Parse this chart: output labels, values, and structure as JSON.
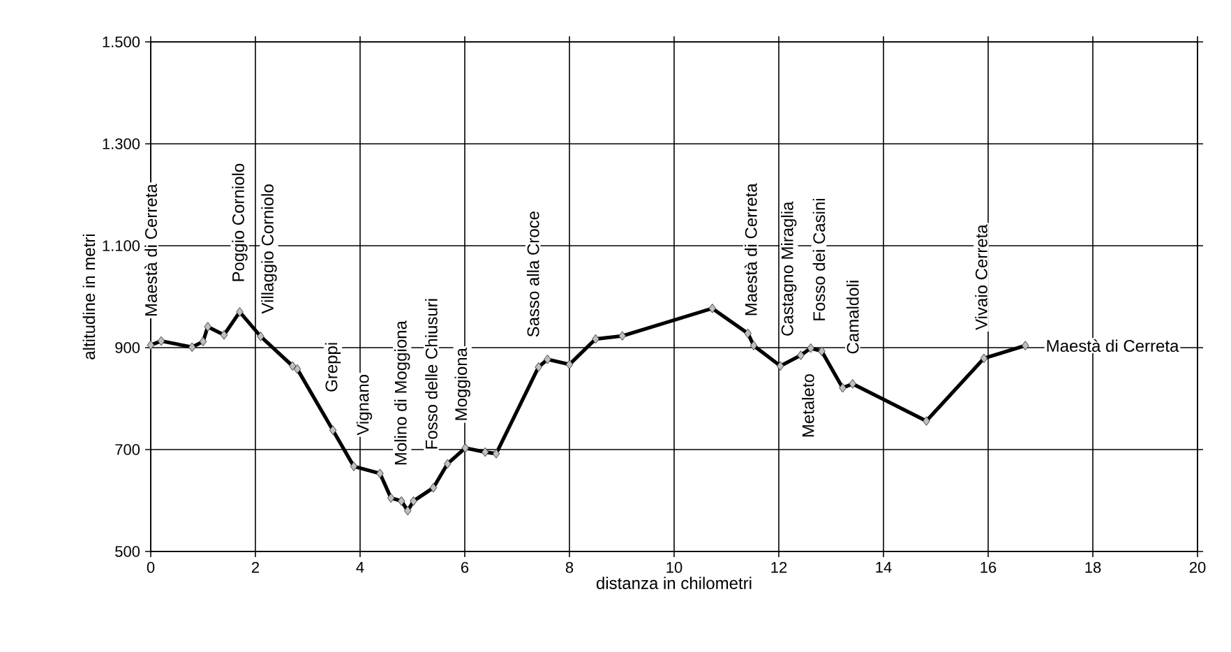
{
  "chart_data": {
    "type": "line",
    "xlabel": "distanza in chilometri",
    "ylabel": "altitudine in metri",
    "x": [
      0,
      0.2,
      0.79,
      1.0,
      1.09,
      1.4,
      1.7,
      2.1,
      2.71,
      2.8,
      3.48,
      3.88,
      4.38,
      4.59,
      4.79,
      4.91,
      5.02,
      5.4,
      5.67,
      6.01,
      6.39,
      6.6,
      7.41,
      7.58,
      8.0,
      8.5,
      9.01,
      10.73,
      11.41,
      11.52,
      12.03,
      12.42,
      12.61,
      12.82,
      13.22,
      13.41,
      14.82,
      15.92,
      16.71
    ],
    "series": [
      {
        "color": "#000000",
        "values": [
          905,
          913,
          901,
          912,
          941,
          925,
          970,
          922,
          864,
          858,
          738,
          667,
          653,
          605,
          599,
          580,
          599,
          625,
          672,
          703,
          695,
          692,
          862,
          877,
          867,
          917,
          923,
          977,
          928,
          904,
          864,
          885,
          899,
          893,
          821,
          829,
          756,
          879,
          904
        ]
      }
    ],
    "xlim": [
      0,
      20
    ],
    "xticks": [
      0,
      2,
      4,
      6,
      8,
      10,
      12,
      14,
      16,
      18,
      20
    ],
    "ylim": [
      500,
      1500
    ],
    "yticks": [
      500,
      700,
      900,
      {
        "value": 1100,
        "label": "1.100"
      },
      {
        "value": 1300,
        "label": "1.300"
      },
      {
        "value": 1500,
        "label": "1.500"
      }
    ],
    "grid": true,
    "marker": "diamond",
    "line_style": "solid",
    "annotations": [
      {
        "text": "Maestà di Cerreta",
        "x": 0,
        "y": 905
      },
      {
        "text": "Poggio Corniolo",
        "x": 1.7,
        "y": 970
      },
      {
        "text": "Villaggio Corniolo",
        "x": 2.1,
        "y": 922
      },
      {
        "text": "Greppi",
        "x": 3.48,
        "y": 738
      },
      {
        "text": "Vignano",
        "x": 3.88,
        "y": 667
      },
      {
        "text": "Molino di Moggiona",
        "x": 4.91,
        "y": 580
      },
      {
        "text": "Fosso delle Chiusuri",
        "x": 5.4,
        "y": 625
      },
      {
        "text": "Moggiona",
        "x": 6.01,
        "y": 703
      },
      {
        "text": "Sasso alla Croce",
        "x": 7.41,
        "y": 862
      },
      {
        "text": "Maestà di Cerreta",
        "x": 11.41,
        "y": 928
      },
      {
        "text": "Castagno Miraglia",
        "x": 12.03,
        "y": 864
      },
      {
        "text": "Fosso dei Casini",
        "x": 12.82,
        "y": 893
      },
      {
        "text": "Metaleto",
        "x": 12.61,
        "y": 899
      },
      {
        "text": "Camaldoli",
        "x": 13.41,
        "y": 829
      },
      {
        "text": "Vivaio Cerreta",
        "x": 15.92,
        "y": 879
      },
      {
        "text": "Maestà di Cerreta",
        "x": 16.71,
        "y": 904
      }
    ]
  }
}
